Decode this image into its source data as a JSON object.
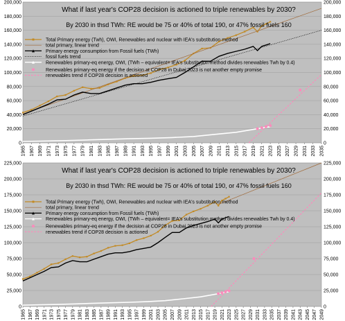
{
  "chart_data": [
    {
      "type": "line",
      "title": "What if last year's COP28 decision is actioned to triple renewables by 2030?",
      "subtitle": "By 2030 in thsd TWh: RE would be 75 or 40% of total 190, or 47% fossil fuels 160",
      "xlim": [
        1965,
        2035
      ],
      "ylim": [
        0,
        200000
      ],
      "yticks": [
        "0",
        "20,000",
        "40,000",
        "60,000",
        "80,000",
        "100,000",
        "120,000",
        "140,000",
        "160,000",
        "180,000",
        "200,000"
      ],
      "xticks": [
        "1965",
        "1967",
        "1969",
        "1971",
        "1973",
        "1975",
        "1977",
        "1979",
        "1981",
        "1983",
        "1985",
        "1987",
        "1989",
        "1991",
        "1993",
        "1995",
        "1997",
        "1999",
        "2001",
        "2003",
        "2005",
        "2007",
        "2009",
        "2011",
        "2013",
        "2015",
        "2017",
        "2019",
        "2021",
        "2023",
        "2025",
        "2027",
        "2029",
        "2031",
        "2033",
        "2035"
      ],
      "legend": [
        "Total Primary energy (Twh), OWI, Renewables and nuclear with IEA's substitution method",
        "total primary, linear trend",
        "Primary energy consumption from Fossil fuels (TWh)",
        "fossil fuels trend",
        "Renewables primary-eq energy, OWI, (TWh – equivalent= IEA's substitution method divides renewables Twh by 0.4)",
        "Renewables primary-eq energy if the decision at COP28 in Dubai 2023 is not another empty promise",
        "renewables trend if COP28 decision is actioned"
      ],
      "series": [
        {
          "name": "Total Primary energy (Twh), OWI, Renewables and nuclear with IEA's substitution method",
          "color": "#c28a24",
          "x": [
            1965,
            1967,
            1969,
            1971,
            1973,
            1975,
            1977,
            1979,
            1981,
            1983,
            1985,
            1987,
            1989,
            1991,
            1993,
            1995,
            1997,
            1999,
            2001,
            2003,
            2005,
            2007,
            2009,
            2011,
            2013,
            2015,
            2017,
            2019,
            2020,
            2021,
            2022,
            2023
          ],
          "values": [
            43000,
            47000,
            53000,
            59000,
            66000,
            68000,
            74000,
            79000,
            77000,
            78000,
            83000,
            87000,
            92000,
            95000,
            96000,
            99000,
            104000,
            107000,
            111000,
            117000,
            127000,
            134000,
            135000,
            144000,
            149000,
            153000,
            158000,
            164000,
            158000,
            166000,
            169000,
            172000
          ]
        },
        {
          "name": "total primary, linear trend",
          "color": "#a06a3a",
          "x": [
            1965,
            2035
          ],
          "values": [
            41000,
            191000
          ]
        },
        {
          "name": "Primary energy consumption from Fossil fuels (TWh)",
          "color": "#000000",
          "x": [
            1965,
            1967,
            1969,
            1971,
            1973,
            1975,
            1977,
            1979,
            1981,
            1983,
            1985,
            1987,
            1989,
            1991,
            1993,
            1995,
            1997,
            1999,
            2001,
            2003,
            2005,
            2007,
            2009,
            2011,
            2013,
            2015,
            2017,
            2019,
            2020,
            2021,
            2022,
            2023
          ],
          "values": [
            40000,
            45000,
            50000,
            55000,
            61000,
            62000,
            68000,
            72000,
            70000,
            70000,
            74000,
            78000,
            82000,
            84000,
            84000,
            86000,
            89000,
            91000,
            93000,
            100000,
            108000,
            116000,
            116000,
            123000,
            127000,
            130000,
            133000,
            137000,
            131000,
            137000,
            139000,
            141000
          ]
        },
        {
          "name": "fossil fuels trend",
          "color": "#000000",
          "x": [
            1965,
            2035
          ],
          "values": [
            38000,
            160000
          ]
        },
        {
          "name": "Renewables primary-eq energy, OWI, (TWh – equivalent= IEA's substitution method divides renewables Twh by 0.4)",
          "color": "#ffffff",
          "x": [
            1965,
            1970,
            1975,
            1980,
            1985,
            1990,
            1995,
            2000,
            2005,
            2010,
            2015,
            2020,
            2023
          ],
          "values": [
            2000,
            2600,
            3200,
            4000,
            5000,
            5800,
            6500,
            7500,
            9000,
            12000,
            15000,
            20000,
            23000
          ]
        },
        {
          "name": "Renewables primary-eq energy if the decision at COP28 in Dubai 2023 is not another empty promise",
          "color": "#ff88bb",
          "x": [
            2020,
            2021,
            2022,
            2023,
            2030
          ],
          "values": [
            20000,
            21500,
            23000,
            24500,
            75000
          ]
        },
        {
          "name": "renewables trend if COP28 decision is actioned",
          "color": "#ff88bb",
          "x": [
            2018,
            2035
          ],
          "values": [
            0,
            97000
          ]
        }
      ]
    },
    {
      "type": "line",
      "title": "What if last year's COP28 decision is actioned to triple renewables by 2030?",
      "subtitle": "By 2030 in thsd TWh: RE would be 75 or 40% of total 190, or 47% fossil fuels 160",
      "xlim": [
        1965,
        2049
      ],
      "ylim": [
        0,
        225000
      ],
      "yticks": [
        "0",
        "25,000",
        "50,000",
        "75,000",
        "100,000",
        "125,000",
        "150,000",
        "175,000",
        "200,000",
        "225,000"
      ],
      "xticks": [
        "1965",
        "1967",
        "1969",
        "1971",
        "1973",
        "1975",
        "1977",
        "1979",
        "1981",
        "1983",
        "1985",
        "1987",
        "1989",
        "1991",
        "1993",
        "1995",
        "1997",
        "1999",
        "2001",
        "2003",
        "2005",
        "2007",
        "2009",
        "2011",
        "2013",
        "2015",
        "2017",
        "2019",
        "2021",
        "2023",
        "2025",
        "2027",
        "2029",
        "2031",
        "2033",
        "2035",
        "2037",
        "2039",
        "2041",
        "2043",
        "2045",
        "2047",
        "2049"
      ],
      "legend": [
        "Total Primary energy (Twh), OWI, Renewables and nuclear with IEA's substitution method",
        "total primary, linear trend",
        "Primary energy consumption from Fossil fuels (TWh)",
        "Renewables primary-eq energy, OWI, (TWh – equivalent= IEA's substitution method divides renewables Twh by 0.4)",
        "Renewables primary-eq energy if the decision at COP28 in Dubai 2023 is not another empty promise",
        "renewables trend if COP28 decision is actioned"
      ],
      "series": [
        {
          "name": "Total Primary energy (Twh), OWI, Renewables and nuclear with IEA's substitution method",
          "color": "#c28a24",
          "x": [
            1965,
            1967,
            1969,
            1971,
            1973,
            1975,
            1977,
            1979,
            1981,
            1983,
            1985,
            1987,
            1989,
            1991,
            1993,
            1995,
            1997,
            1999,
            2001,
            2003,
            2005,
            2007,
            2009,
            2011,
            2013,
            2015,
            2017,
            2019,
            2020,
            2021,
            2022,
            2023
          ],
          "values": [
            43000,
            47000,
            53000,
            59000,
            66000,
            68000,
            74000,
            79000,
            77000,
            78000,
            83000,
            87000,
            92000,
            95000,
            96000,
            99000,
            104000,
            107000,
            111000,
            117000,
            127000,
            134000,
            135000,
            144000,
            149000,
            153000,
            158000,
            164000,
            158000,
            166000,
            169000,
            172000
          ]
        },
        {
          "name": "total primary, linear trend",
          "color": "#a06a3a",
          "x": [
            2020,
            2049
          ],
          "values": [
            160000,
            225000
          ]
        },
        {
          "name": "Primary energy consumption from Fossil fuels (TWh)",
          "color": "#000000",
          "x": [
            1965,
            1967,
            1969,
            1971,
            1973,
            1975,
            1977,
            1979,
            1981,
            1983,
            1985,
            1987,
            1989,
            1991,
            1993,
            1995,
            1997,
            1999,
            2001,
            2003,
            2005,
            2007,
            2009,
            2011,
            2013,
            2015,
            2017,
            2019,
            2020,
            2021,
            2022,
            2023
          ],
          "values": [
            40000,
            45000,
            50000,
            55000,
            61000,
            62000,
            68000,
            72000,
            70000,
            70000,
            74000,
            78000,
            82000,
            84000,
            84000,
            86000,
            89000,
            91000,
            93000,
            100000,
            108000,
            116000,
            116000,
            123000,
            127000,
            130000,
            133000,
            137000,
            131000,
            137000,
            139000,
            141000
          ]
        },
        {
          "name": "Renewables primary-eq energy, OWI, (TWh – equivalent= IEA's substitution method divides renewables Twh by 0.4)",
          "color": "#ffffff",
          "x": [
            1965,
            1970,
            1975,
            1980,
            1985,
            1990,
            1995,
            2000,
            2005,
            2010,
            2015,
            2020,
            2023
          ],
          "values": [
            2000,
            2600,
            3200,
            4000,
            5000,
            5800,
            6500,
            7500,
            9000,
            12000,
            15000,
            20000,
            23000
          ]
        },
        {
          "name": "Renewables primary-eq energy if the decision at COP28 in Dubai 2023 is not another empty promise",
          "color": "#ff88bb",
          "x": [
            2020,
            2021,
            2022,
            2023,
            2030
          ],
          "values": [
            20000,
            21500,
            23000,
            24500,
            75000
          ]
        },
        {
          "name": "renewables trend if COP28 decision is actioned",
          "color": "#ff88bb",
          "x": [
            2018,
            2049
          ],
          "values": [
            0,
            178000
          ]
        }
      ]
    }
  ]
}
